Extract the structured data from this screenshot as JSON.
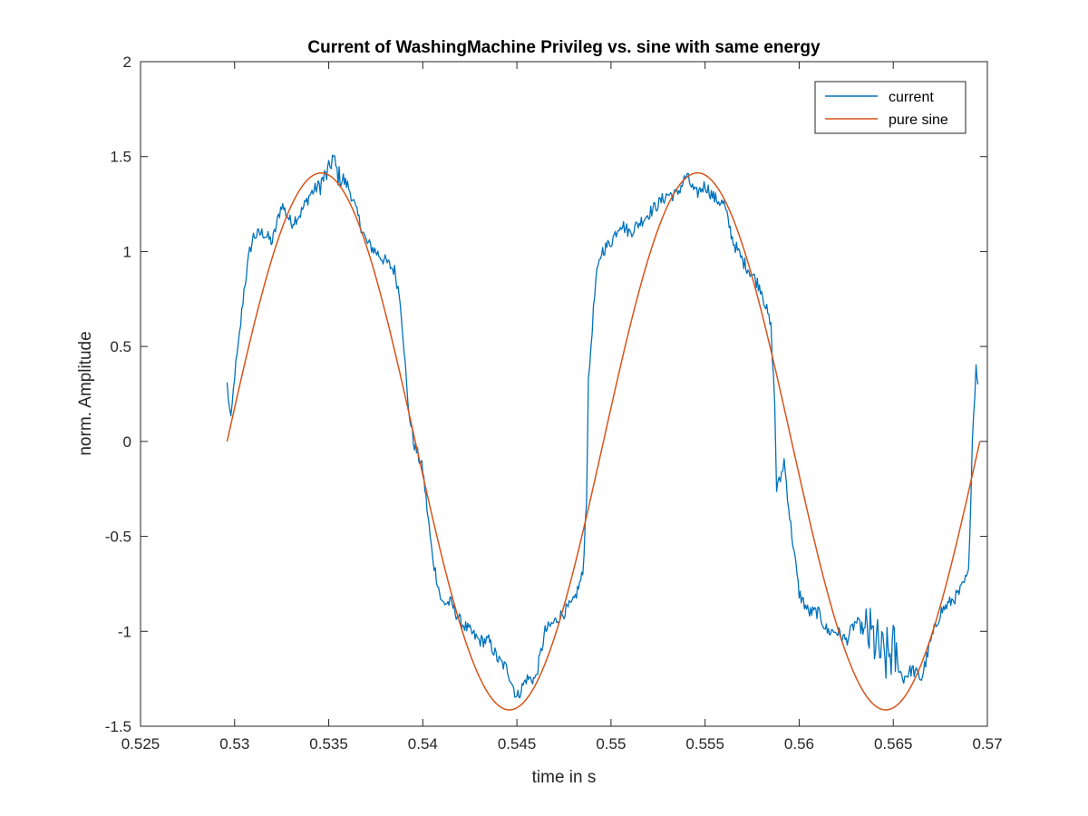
{
  "chart_data": {
    "type": "line",
    "title": "Current of WashingMachine Privileg vs. sine with same energy",
    "xlabel": "time in s",
    "ylabel": "norm. Amplitude",
    "xlim": [
      0.525,
      0.57
    ],
    "ylim": [
      -1.5,
      2
    ],
    "xticks": [
      0.525,
      0.53,
      0.535,
      0.54,
      0.545,
      0.55,
      0.555,
      0.56,
      0.565,
      0.57
    ],
    "xtick_labels": [
      "0.525",
      "0.53",
      "0.535",
      "0.54",
      "0.545",
      "0.55",
      "0.555",
      "0.56",
      "0.565",
      "0.57"
    ],
    "yticks": [
      -1.5,
      -1,
      -0.5,
      0,
      0.5,
      1,
      1.5,
      2
    ],
    "ytick_labels": [
      "-1.5",
      "-1",
      "-0.5",
      "0",
      "0.5",
      "1",
      "1.5",
      "2"
    ],
    "grid": false,
    "legend_position": "top-right",
    "series": [
      {
        "name": "current",
        "color": "#0072BD",
        "x": [
          0.5296,
          0.5298,
          0.53,
          0.5302,
          0.5305,
          0.5308,
          0.531,
          0.5315,
          0.532,
          0.5325,
          0.533,
          0.5335,
          0.534,
          0.5345,
          0.535,
          0.5352,
          0.5355,
          0.536,
          0.5362,
          0.5365,
          0.537,
          0.5375,
          0.538,
          0.5385,
          0.5388,
          0.539,
          0.5392,
          0.5395,
          0.54,
          0.5405,
          0.541,
          0.5415,
          0.542,
          0.5425,
          0.543,
          0.5435,
          0.544,
          0.5445,
          0.545,
          0.5455,
          0.546,
          0.5465,
          0.547,
          0.5475,
          0.548,
          0.5485,
          0.5487,
          0.5488,
          0.549,
          0.5492,
          0.5495,
          0.55,
          0.5505,
          0.551,
          0.5515,
          0.552,
          0.5525,
          0.553,
          0.5535,
          0.554,
          0.5545,
          0.555,
          0.5555,
          0.556,
          0.5565,
          0.557,
          0.5575,
          0.558,
          0.5585,
          0.5587,
          0.5588,
          0.559,
          0.5592,
          0.5595,
          0.56,
          0.5605,
          0.561,
          0.5615,
          0.562,
          0.5625,
          0.563,
          0.5635,
          0.564,
          0.5645,
          0.565,
          0.5655,
          0.566,
          0.5665,
          0.567,
          0.5675,
          0.568,
          0.5685,
          0.569,
          0.5692,
          0.5694,
          0.5695
        ],
        "y": [
          0.3,
          0.1,
          0.35,
          0.5,
          0.8,
          1.0,
          1.08,
          1.1,
          1.05,
          1.25,
          1.15,
          1.2,
          1.3,
          1.35,
          1.42,
          1.5,
          1.4,
          1.35,
          1.3,
          1.2,
          1.05,
          1.0,
          0.95,
          0.9,
          0.75,
          0.5,
          0.2,
          0.0,
          -0.15,
          -0.6,
          -0.85,
          -0.85,
          -0.95,
          -1.0,
          -1.05,
          -1.05,
          -1.15,
          -1.2,
          -1.35,
          -1.25,
          -1.25,
          -1.0,
          -0.95,
          -0.9,
          -0.85,
          -0.7,
          -0.3,
          0.3,
          0.6,
          0.85,
          1.0,
          1.05,
          1.15,
          1.1,
          1.15,
          1.2,
          1.25,
          1.3,
          1.3,
          1.4,
          1.3,
          1.35,
          1.28,
          1.25,
          1.05,
          0.95,
          0.88,
          0.8,
          0.6,
          0.2,
          -0.25,
          -0.2,
          -0.1,
          -0.4,
          -0.8,
          -0.9,
          -0.9,
          -1.0,
          -1.0,
          -1.05,
          -0.95,
          -1.0,
          -1.05,
          -1.15,
          -1.1,
          -1.25,
          -1.2,
          -1.25,
          -1.05,
          -0.9,
          -0.85,
          -0.8,
          -0.7,
          0.0,
          0.4,
          0.3
        ]
      },
      {
        "name": "pure sine",
        "color": "#D95319",
        "function": "sine",
        "amplitude": 1.414,
        "frequency_hz": 50,
        "x_start": 0.5296,
        "x_end": 0.5696
      }
    ]
  }
}
